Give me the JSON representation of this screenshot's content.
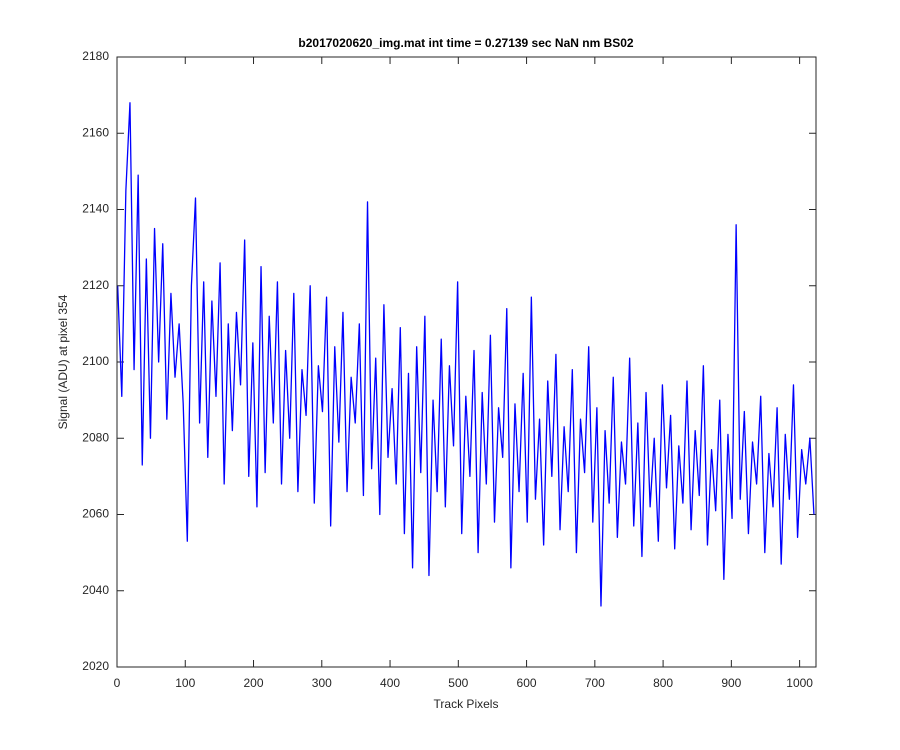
{
  "chart_data": {
    "type": "line",
    "title": "b2017020620_img.mat int time = 0.27139 sec  NaN nm BS02",
    "x_label": "Track Pixels",
    "y_label": "Signal (ADU) at pixel 354",
    "xlim": [
      0,
      1024
    ],
    "ylim": [
      2020,
      2180
    ],
    "xticks": [
      0,
      100,
      200,
      300,
      400,
      500,
      600,
      700,
      800,
      900,
      1000
    ],
    "yticks": [
      2020,
      2040,
      2060,
      2080,
      2100,
      2120,
      2140,
      2160,
      2180
    ],
    "grid": false,
    "x": [
      1,
      7,
      13,
      19,
      25,
      31,
      37,
      43,
      49,
      55,
      61,
      67,
      73,
      79,
      85,
      91,
      97,
      103,
      109,
      115,
      121,
      127,
      133,
      139,
      145,
      151,
      157,
      163,
      169,
      175,
      181,
      187,
      193,
      199,
      205,
      211,
      217,
      223,
      229,
      235,
      241,
      247,
      253,
      259,
      265,
      271,
      277,
      283,
      289,
      295,
      301,
      307,
      313,
      319,
      325,
      331,
      337,
      343,
      349,
      355,
      361,
      367,
      373,
      379,
      385,
      391,
      397,
      403,
      409,
      415,
      421,
      427,
      433,
      439,
      445,
      451,
      457,
      463,
      469,
      475,
      481,
      487,
      493,
      499,
      505,
      511,
      517,
      523,
      529,
      535,
      541,
      547,
      553,
      559,
      565,
      571,
      577,
      583,
      589,
      595,
      601,
      607,
      613,
      619,
      625,
      631,
      637,
      643,
      649,
      655,
      661,
      667,
      673,
      679,
      685,
      691,
      697,
      703,
      709,
      715,
      721,
      727,
      733,
      739,
      745,
      751,
      757,
      763,
      769,
      775,
      781,
      787,
      793,
      799,
      805,
      811,
      817,
      823,
      829,
      835,
      841,
      847,
      853,
      859,
      865,
      871,
      877,
      883,
      889,
      895,
      901,
      907,
      913,
      919,
      925,
      931,
      937,
      943,
      949,
      955,
      961,
      967,
      973,
      979,
      985,
      991,
      997,
      1003,
      1009,
      1015,
      1021
    ],
    "series": [
      {
        "color": "#0000ff",
        "values": [
          2120,
          2091,
          2145,
          2168,
          2098,
          2149,
          2073,
          2127,
          2080,
          2135,
          2100,
          2131,
          2085,
          2118,
          2096,
          2110,
          2089,
          2053,
          2120,
          2143,
          2084,
          2121,
          2075,
          2116,
          2091,
          2126,
          2068,
          2110,
          2082,
          2113,
          2094,
          2132,
          2070,
          2105,
          2062,
          2125,
          2071,
          2112,
          2084,
          2121,
          2068,
          2103,
          2080,
          2118,
          2066,
          2098,
          2086,
          2120,
          2063,
          2099,
          2087,
          2117,
          2057,
          2104,
          2079,
          2113,
          2066,
          2096,
          2084,
          2110,
          2065,
          2142,
          2072,
          2101,
          2060,
          2115,
          2075,
          2093,
          2068,
          2109,
          2055,
          2097,
          2046,
          2104,
          2071,
          2112,
          2044,
          2090,
          2066,
          2106,
          2062,
          2099,
          2078,
          2121,
          2055,
          2091,
          2070,
          2103,
          2050,
          2092,
          2068,
          2107,
          2058,
          2088,
          2075,
          2114,
          2046,
          2089,
          2066,
          2097,
          2058,
          2117,
          2064,
          2085,
          2052,
          2095,
          2070,
          2102,
          2056,
          2083,
          2066,
          2098,
          2050,
          2085,
          2071,
          2104,
          2058,
          2088,
          2036,
          2082,
          2063,
          2096,
          2054,
          2079,
          2068,
          2101,
          2057,
          2084,
          2049,
          2092,
          2062,
          2080,
          2053,
          2094,
          2067,
          2086,
          2051,
          2078,
          2063,
          2095,
          2056,
          2082,
          2065,
          2099,
          2052,
          2077,
          2061,
          2090,
          2043,
          2081,
          2059,
          2136,
          2064,
          2087,
          2055,
          2079,
          2068,
          2091,
          2050,
          2076,
          2062,
          2088,
          2047,
          2081,
          2064,
          2094,
          2054,
          2077,
          2068,
          2080,
          2060
        ]
      }
    ]
  }
}
